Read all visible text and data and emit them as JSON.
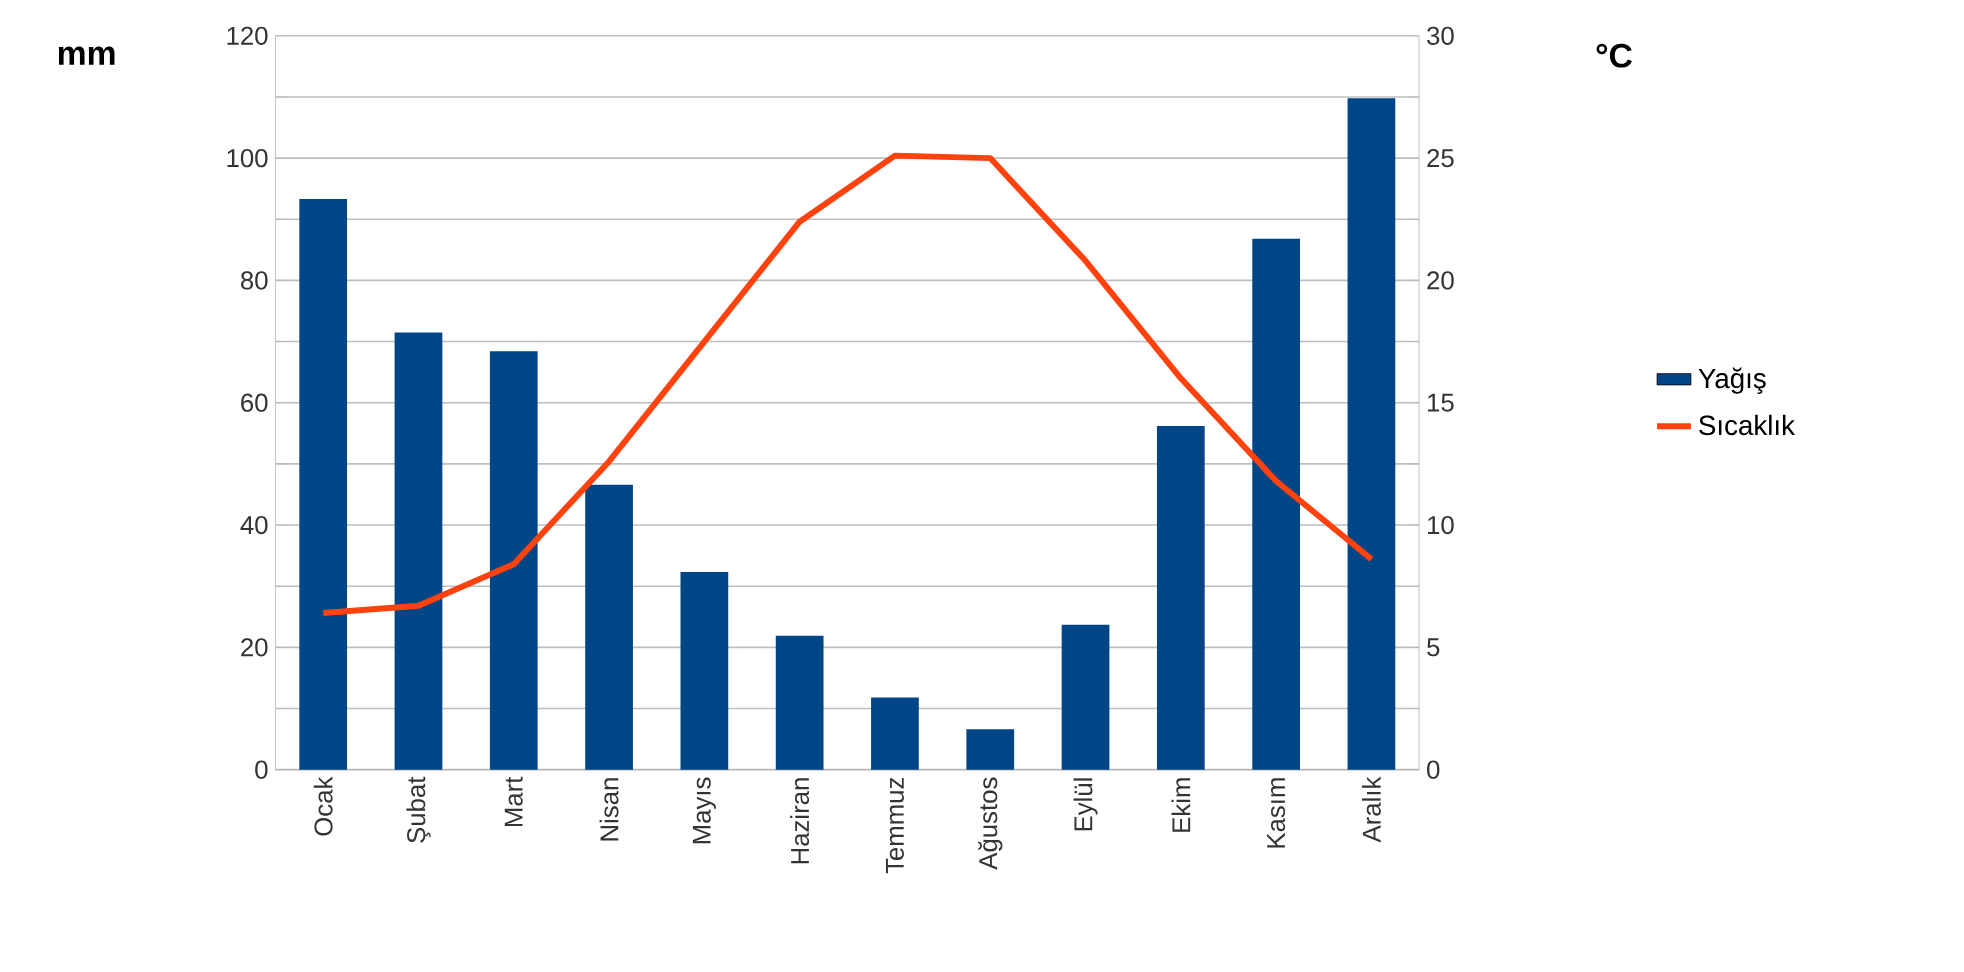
{
  "chart_data": {
    "type": "bar",
    "ylabel": "mm",
    "y2label": "°C",
    "categories": [
      "Ocak",
      "Şubat",
      "Mart",
      "Nisan",
      "Mayıs",
      "Haziran",
      "Temmuz",
      "Ağustos",
      "Eylül",
      "Ekim",
      "Kasım",
      "Aralık"
    ],
    "series": [
      {
        "name": "Yağış",
        "color": "#004586",
        "values": [
          93.3,
          71.5,
          68.4,
          46.6,
          32.3,
          21.9,
          11.8,
          6.6,
          23.7,
          56.2,
          86.8,
          109.8
        ]
      },
      {
        "name": "Sıcaklık",
        "type": "line",
        "axis": "y2",
        "color": "#ff420e",
        "values": [
          6.4,
          6.7,
          8.4,
          12.6,
          17.5,
          22.4,
          25.1,
          25.0,
          20.8,
          16.0,
          11.8,
          8.6
        ]
      }
    ],
    "ylim": [
      0,
      120
    ],
    "yticks": [
      0,
      {
        "value": 10,
        "label": null
      },
      20,
      {
        "value": 30,
        "label": null
      },
      40,
      {
        "value": 50,
        "label": null
      },
      60,
      {
        "value": 70,
        "label": null
      },
      80,
      {
        "value": 90,
        "label": null
      },
      100,
      {
        "value": 110,
        "label": null
      },
      120
    ],
    "y2lim": [
      0,
      30
    ],
    "y2ticks": [
      0,
      {
        "value": 2.5,
        "label": null
      },
      5,
      {
        "value": 7.5,
        "label": null
      },
      10,
      {
        "value": 12.5,
        "label": null
      },
      15,
      {
        "value": 17.5,
        "label": null
      },
      20,
      {
        "value": 22.5,
        "label": null
      },
      25,
      {
        "value": 27.5,
        "label": null
      },
      30
    ],
    "grid": "y",
    "legend": "right"
  }
}
